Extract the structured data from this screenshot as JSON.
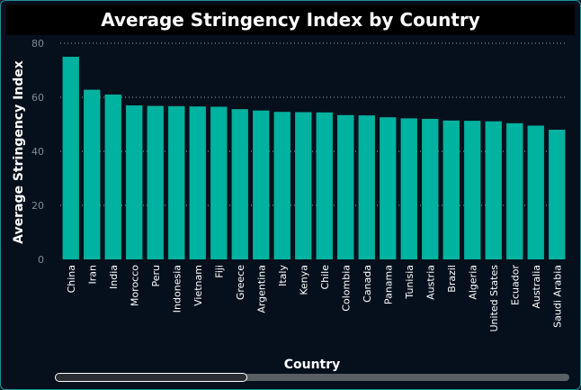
{
  "chart_data": {
    "type": "bar",
    "title": "Average Stringency Index by Country",
    "xlabel": "Country",
    "ylabel": "Average Stringency Index",
    "ylim": [
      0,
      80
    ],
    "yticks": [
      0,
      20,
      40,
      60,
      80
    ],
    "grid": true,
    "categories": [
      "China",
      "Iran",
      "India",
      "Morocco",
      "Peru",
      "Indonesia",
      "Vietnam",
      "Fiji",
      "Greece",
      "Argentina",
      "Italy",
      "Kenya",
      "Chile",
      "Colombia",
      "Canada",
      "Panama",
      "Tunisia",
      "Austria",
      "Brazil",
      "Algeria",
      "United States",
      "Ecuador",
      "Australia",
      "Saudi Arabia"
    ],
    "values": [
      75.0,
      62.8,
      61.0,
      57.0,
      56.8,
      56.7,
      56.6,
      56.5,
      55.6,
      55.1,
      54.6,
      54.5,
      54.4,
      53.4,
      53.3,
      52.6,
      52.2,
      52.0,
      51.4,
      51.3,
      51.1,
      50.4,
      49.5,
      48.0
    ],
    "bar_color": "#00b2a0"
  }
}
